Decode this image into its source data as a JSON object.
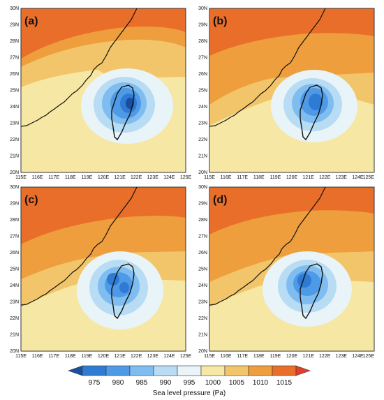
{
  "panels": [
    {
      "label": "(a)"
    },
    {
      "label": "(b)"
    },
    {
      "label": "(c)"
    },
    {
      "label": "(d)"
    }
  ],
  "axes": {
    "x_ticks": [
      "115E",
      "116E",
      "117E",
      "118E",
      "119E",
      "120E",
      "121E",
      "122E",
      "123E",
      "124E",
      "125E"
    ],
    "y_ticks": [
      "20N",
      "21N",
      "22N",
      "23N",
      "24N",
      "25N",
      "26N",
      "27N",
      "28N",
      "29N",
      "30N"
    ],
    "lon_range": [
      115,
      125
    ],
    "lat_range": [
      20,
      30
    ]
  },
  "colorbar": {
    "title": "Sea level pressure (Pa)",
    "ticks": [
      "975",
      "980",
      "985",
      "990",
      "995",
      "1000",
      "1005",
      "1010",
      "1015"
    ],
    "colors": [
      "#1a4f9e",
      "#2f7bd3",
      "#4f9ae6",
      "#7fbdf0",
      "#b7dcf4",
      "#e9f4f8",
      "#f6e7a4",
      "#f2c56a",
      "#ee9e3c",
      "#e96e2a",
      "#e0402a"
    ]
  }
}
